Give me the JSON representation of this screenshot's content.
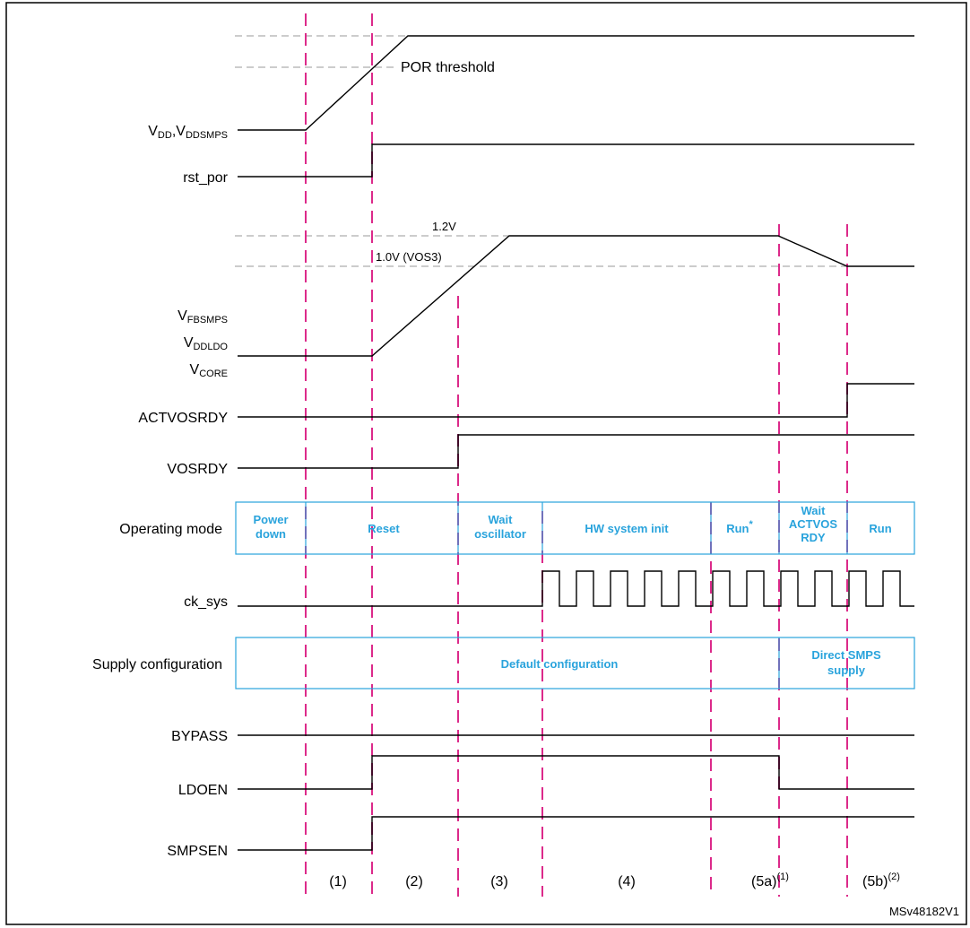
{
  "title": "",
  "colors": {
    "marker": "#dc2a8a",
    "mode_box": "#29a3dc",
    "threshold": "#9a9a9a",
    "signal": "#000000"
  },
  "signals": {
    "vdd": {
      "main": "V",
      "s1": "DD",
      "sep": ",V",
      "s2": "DDSMPS"
    },
    "rst_por": "rst_por",
    "vfbsmps": {
      "main": "V",
      "sub": "FBSMPS"
    },
    "vddldo": {
      "main": "V",
      "sub": "DDLDO"
    },
    "vcore": {
      "main": "V",
      "sub": "CORE"
    },
    "actvosrdy": "ACTVOSRDY",
    "vosrdy": "VOSRDY",
    "operating_mode": "Operating mode",
    "ck_sys": "ck_sys",
    "supply_config": "Supply configuration",
    "bypass": "BYPASS",
    "ldoen": "LDOEN",
    "smpsen": "SMPSEN"
  },
  "annotations": {
    "por_threshold": "POR threshold",
    "v12": "1.2V",
    "v10": "1.0V (VOS3)"
  },
  "modes": {
    "power_down": [
      "Power",
      "down"
    ],
    "reset": "Reset",
    "wait_osc": [
      "Wait",
      "oscillator"
    ],
    "hw_init": "HW system init",
    "run_star": "Run",
    "run_star_mark": "*",
    "wait_actvos": [
      "Wait",
      "ACTVOS",
      "RDY"
    ],
    "run": "Run"
  },
  "supply": {
    "default": "Default configuration",
    "direct": [
      "Direct SMPS",
      "supply"
    ]
  },
  "phases": {
    "p1": "(1)",
    "p2": "(2)",
    "p3": "(3)",
    "p4": "(4)",
    "p5a": "(5a)",
    "p5a_sup": "(1)",
    "p5b": "(5b)",
    "p5b_sup": "(2)"
  },
  "ref_id": "MSv48182V1"
}
